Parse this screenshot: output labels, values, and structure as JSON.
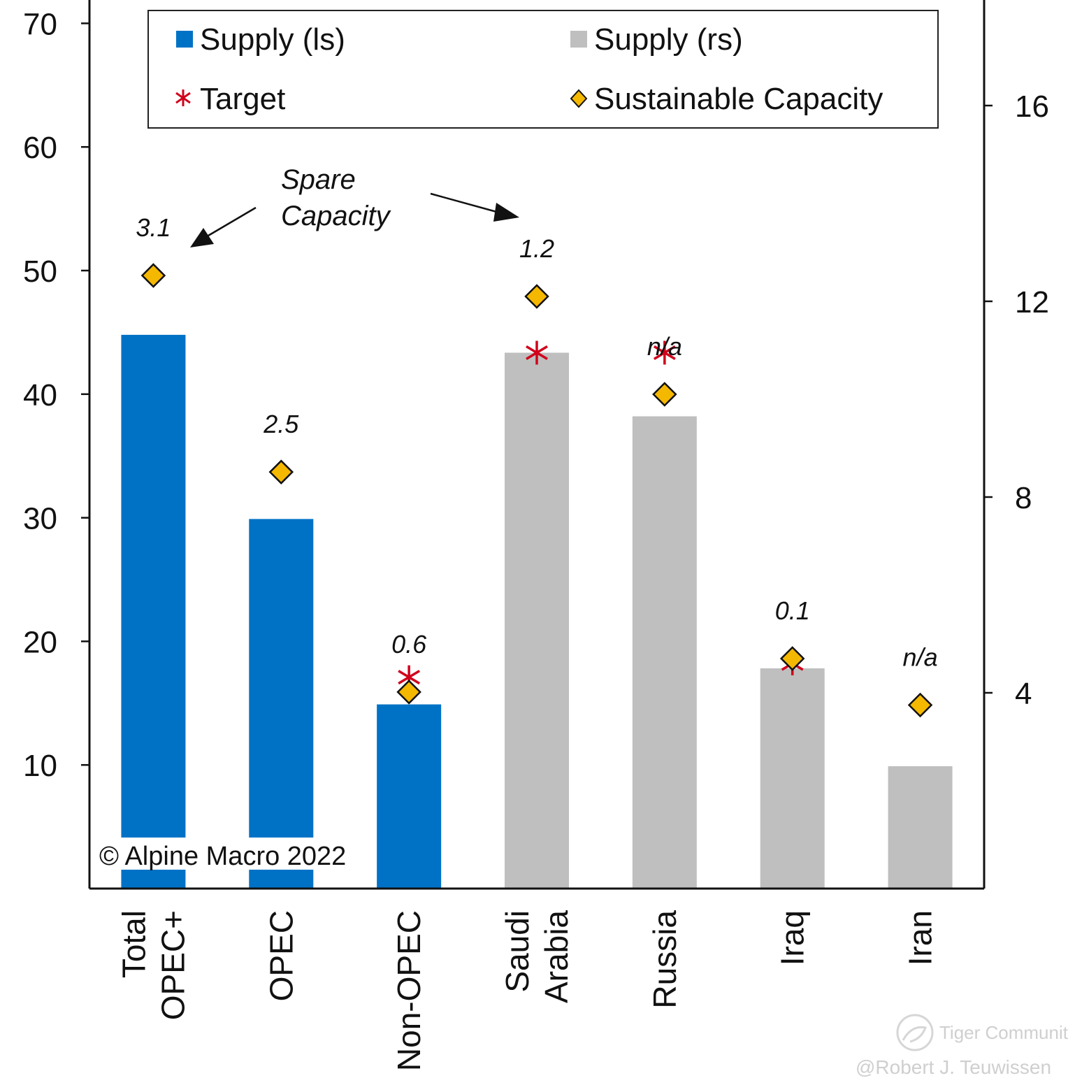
{
  "chart_data": {
    "type": "bar",
    "categories": [
      [
        "Total",
        "OPEC+"
      ],
      [
        "OPEC"
      ],
      [
        "Non-OPEC"
      ],
      [
        "Saudi",
        "Arabia"
      ],
      [
        "Russia"
      ],
      [
        "Iraq"
      ],
      [
        "Iran"
      ]
    ],
    "y_left": {
      "ticks": [
        10,
        20,
        30,
        40,
        50,
        60,
        70
      ],
      "lim": [
        0,
        72
      ]
    },
    "y_right": {
      "ticks": [
        4,
        8,
        12,
        16
      ],
      "lim": [
        0,
        17.64
      ]
    },
    "series": [
      {
        "name": "Supply (ls)",
        "axis": "left",
        "color": "#0072c6",
        "values": [
          44.8,
          29.9,
          14.9,
          null,
          null,
          null,
          null
        ]
      },
      {
        "name": "Supply (rs)",
        "axis": "right",
        "color": "#bfbfbf",
        "values": [
          null,
          null,
          null,
          10.95,
          9.65,
          4.5,
          2.5
        ]
      },
      {
        "name": "Target",
        "axis": "mixed",
        "color": "#d0021b",
        "values": [
          null,
          null,
          17.1,
          10.95,
          10.95,
          4.6,
          null
        ]
      },
      {
        "name": "Sustainable Capacity",
        "axis": "mixed",
        "color": "#f5b800",
        "values": [
          49.6,
          33.7,
          15.9,
          12.1,
          10.1,
          4.7,
          3.75
        ]
      }
    ],
    "axis_map": [
      "left",
      "left",
      "left",
      "right",
      "right",
      "right",
      "right"
    ],
    "spare_capacity_labels": [
      "3.1",
      "2.5",
      "0.6",
      "1.2",
      "n/a",
      "0.1",
      "n/a"
    ],
    "legend": {
      "supply_ls": "Supply (ls)",
      "supply_rs": "Supply (rs)",
      "target": "Target",
      "sustainable": "Sustainable Capacity"
    },
    "annotation": [
      "Spare",
      "Capacity"
    ],
    "copyright": "© Alpine Macro 2022",
    "colors": {
      "blue": "#0072c6",
      "gray": "#bfbfbf",
      "target": "#d0021b",
      "diamond": "#f5b800"
    }
  },
  "watermark": {
    "brand": "Tiger Community",
    "author": "@Robert J. Teuwissen"
  }
}
